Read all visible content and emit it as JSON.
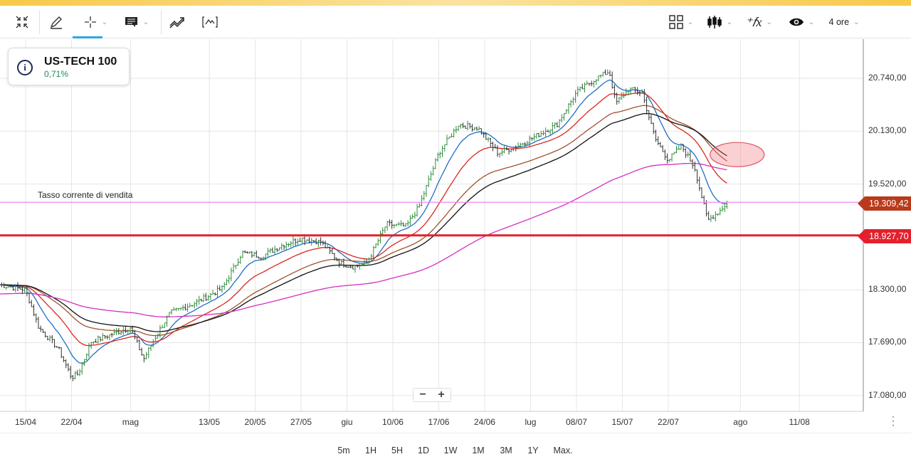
{
  "toolbar": {
    "timeframe": "4 ore",
    "icons": [
      "collapse-icon",
      "pencil-icon",
      "crosshair-icon",
      "comment-icon",
      "trend-icon",
      "indicator-bracket-icon",
      "layout-grid-icon",
      "candlestick-icon",
      "fx-icon",
      "eye-icon"
    ]
  },
  "instrument": {
    "name": "US-TECH 100",
    "change": "0,71%"
  },
  "annotation": "Tasso corrente di vendita",
  "timeframes": [
    "5m",
    "1H",
    "5H",
    "1D",
    "1W",
    "1M",
    "3M",
    "1Y",
    "Max."
  ],
  "zoom": {
    "minus": "−",
    "plus": "+"
  },
  "colors": {
    "sell_line": "#ee88ee",
    "support": "#e3202d",
    "tag_current": "#b83a1a",
    "tag_support": "#e3202d"
  },
  "chart_data": {
    "type": "candlestick",
    "title": "US-TECH 100",
    "y_ticks": [
      "20.740,00",
      "20.130,00",
      "19.520,00",
      "18.300,00",
      "17.690,00",
      "17.080,00"
    ],
    "y_tick_values": [
      20740,
      20130,
      19520,
      18300,
      17690,
      17080
    ],
    "x_ticks": [
      "15/04",
      "22/04",
      "mag",
      "13/05",
      "20/05",
      "27/05",
      "giu",
      "10/06",
      "17/06",
      "24/06",
      "lug",
      "08/07",
      "15/07",
      "22/07",
      "ago",
      "11/08"
    ],
    "x_tick_days": [
      0,
      7,
      16,
      28,
      35,
      42,
      49,
      56,
      63,
      70,
      77,
      84,
      91,
      98,
      109,
      118
    ],
    "ylim": [
      16960,
      20960
    ],
    "xlim_days": [
      -4,
      127.7
    ],
    "current_price": {
      "value": 19309.42,
      "label": "19.309,42"
    },
    "support_level": {
      "value": 18927.7,
      "label": "18.927,70"
    },
    "close_points": [
      [
        -4,
        18359
      ],
      [
        0,
        18300
      ],
      [
        2,
        17866
      ],
      [
        5,
        17620
      ],
      [
        7,
        17290
      ],
      [
        8,
        17330
      ],
      [
        10,
        17700
      ],
      [
        13,
        17784
      ],
      [
        16,
        17866
      ],
      [
        18,
        17500
      ],
      [
        20,
        17784
      ],
      [
        22,
        18030
      ],
      [
        26,
        18154
      ],
      [
        30,
        18318
      ],
      [
        33,
        18728
      ],
      [
        36,
        18687
      ],
      [
        39,
        18810
      ],
      [
        42,
        18892
      ],
      [
        45,
        18851
      ],
      [
        48,
        18606
      ],
      [
        50,
        18565
      ],
      [
        52,
        18606
      ],
      [
        55,
        19057
      ],
      [
        58,
        19032
      ],
      [
        60,
        19262
      ],
      [
        63,
        19878
      ],
      [
        66,
        20206
      ],
      [
        69,
        20165
      ],
      [
        72,
        19878
      ],
      [
        75,
        19960
      ],
      [
        78,
        20083
      ],
      [
        81,
        20206
      ],
      [
        84,
        20576
      ],
      [
        87,
        20740
      ],
      [
        89,
        20822
      ],
      [
        90,
        20453
      ],
      [
        92,
        20617
      ],
      [
        94,
        20576
      ],
      [
        96,
        20042
      ],
      [
        98,
        19796
      ],
      [
        100,
        19960
      ],
      [
        102,
        19714
      ],
      [
        104,
        19098
      ],
      [
        106,
        19221
      ],
      [
        107,
        19309
      ]
    ],
    "moving_averages": [
      {
        "name": "MA-blue",
        "color": "#1f6fc4",
        "period": 12
      },
      {
        "name": "MA-red",
        "color": "#d9281f",
        "period": 28
      },
      {
        "name": "MA-brown",
        "color": "#a0522d",
        "period": 55
      },
      {
        "name": "MA-black",
        "color": "#111111",
        "period": 70
      },
      {
        "name": "MA-magenta",
        "color": "#d42fc0",
        "period": 180
      }
    ],
    "highlight": {
      "type": "ellipse",
      "day": 108.5,
      "value": 19860
    }
  }
}
